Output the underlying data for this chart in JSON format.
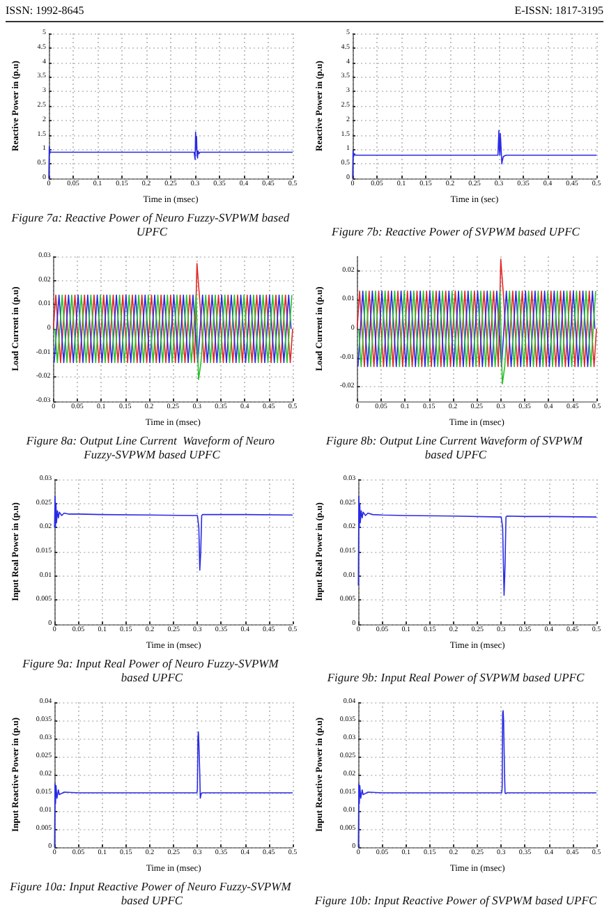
{
  "chart_data": [
    {
      "type": "line",
      "title": "Figure 7a: Reactive Power of Neuro Fuzzy-SVPWM based UPFC",
      "xlabel": "Time in (msec)",
      "ylabel": "Reactive Power in (p.u)",
      "annotations": [
        "ISSN: 1992-8645",
        "E-ISSN: 1817-3195"
      ],
      "xlim": [
        0,
        0.5
      ],
      "ylim": [
        0,
        5
      ],
      "xticks": [
        0,
        0.05,
        0.1,
        0.15,
        0.2,
        0.25,
        0.3,
        0.35,
        0.4,
        0.45,
        0.5
      ],
      "yticks": [
        0,
        0.5,
        1,
        1.5,
        2,
        2.5,
        3,
        3.5,
        4,
        4.5,
        5
      ],
      "grid": true,
      "marker": "none",
      "line_style": "solid",
      "series": [
        {
          "color": "#2a2ae6",
          "x": [
            0,
            0.001,
            0.002,
            0.003,
            0.005,
            0.05,
            0.1,
            0.2,
            0.298,
            0.3,
            0.301,
            0.302,
            0.303,
            0.304,
            0.305,
            0.306,
            0.308,
            0.31,
            0.4,
            0.5
          ],
          "values": [
            0,
            1.1,
            0.85,
            0.92,
            0.9,
            0.9,
            0.9,
            0.9,
            0.9,
            0.65,
            1.6,
            1.0,
            1.45,
            0.8,
            0.7,
            0.95,
            0.85,
            0.9,
            0.9,
            0.9
          ]
        }
      ]
    },
    {
      "type": "line",
      "title": "Figure 7b: Reactive Power of SVPWM based UPFC",
      "xlabel": "Time in (sec)",
      "ylabel": "Reactive Power in (p.u)",
      "xlim": [
        0,
        0.5
      ],
      "ylim": [
        0,
        5
      ],
      "xticks": [
        0,
        0.05,
        0.1,
        0.15,
        0.2,
        0.25,
        0.3,
        0.35,
        0.4,
        0.45,
        0.5
      ],
      "yticks": [
        0,
        0.5,
        1,
        1.5,
        2,
        2.5,
        3,
        3.5,
        4,
        4.5,
        5
      ],
      "grid": true,
      "marker": "none",
      "line_style": "solid",
      "series": [
        {
          "color": "#2a2ae6",
          "x": [
            0,
            0.001,
            0.002,
            0.004,
            0.006,
            0.1,
            0.2,
            0.298,
            0.3,
            0.301,
            0.302,
            0.303,
            0.304,
            0.306,
            0.307,
            0.309,
            0.312,
            0.315,
            0.4,
            0.5
          ],
          "values": [
            0,
            0.95,
            0.75,
            0.85,
            0.8,
            0.8,
            0.8,
            0.8,
            1.65,
            1.0,
            0.8,
            1.55,
            1.2,
            0.5,
            0.6,
            0.75,
            0.78,
            0.8,
            0.8,
            0.8
          ]
        }
      ]
    },
    {
      "type": "line",
      "title": "Figure 8a: Output Line Current  Waveform of Neuro Fuzzy-SVPWM based UPFC",
      "xlabel": "Time in (msec)",
      "ylabel": "Load Current in (p.u)",
      "xlim": [
        0,
        0.5
      ],
      "ylim": [
        -0.03,
        0.03
      ],
      "xticks": [
        0,
        0.05,
        0.1,
        0.15,
        0.2,
        0.25,
        0.3,
        0.35,
        0.4,
        0.45,
        0.5
      ],
      "yticks": [
        -0.03,
        -0.02,
        -0.01,
        0,
        0.01,
        0.02,
        0.03
      ],
      "grid": true,
      "marker": "none",
      "line_style": "solid",
      "series": [
        {
          "color": "#e02828",
          "x": [
            0,
            0.005,
            0.01,
            0.015,
            0.02,
            0.025,
            0.03,
            0.035,
            0.04,
            0.045,
            0.05,
            0.055,
            0.06,
            0.065,
            0.07,
            0.075,
            0.08,
            0.085,
            0.09,
            0.095,
            0.1,
            0.105,
            0.11,
            0.115,
            0.12,
            0.125,
            0.13,
            0.135,
            0.14,
            0.145,
            0.15,
            0.155,
            0.16,
            0.165,
            0.17,
            0.175,
            0.18,
            0.185,
            0.19,
            0.195,
            0.2,
            0.205,
            0.21,
            0.215,
            0.22,
            0.225,
            0.23,
            0.235,
            0.24,
            0.245,
            0.25,
            0.255,
            0.26,
            0.265,
            0.27,
            0.275,
            0.28,
            0.285,
            0.29,
            0.295,
            0.3,
            0.305,
            0.31,
            0.315,
            0.32,
            0.325,
            0.33,
            0.335,
            0.34,
            0.345,
            0.35,
            0.355,
            0.36,
            0.365,
            0.37,
            0.375,
            0.38,
            0.385,
            0.39,
            0.395,
            0.4,
            0.405,
            0.41,
            0.415,
            0.42,
            0.425,
            0.43,
            0.435,
            0.44,
            0.445,
            0.45,
            0.455,
            0.46,
            0.465,
            0.47,
            0.475,
            0.48,
            0.485,
            0.49,
            0.495,
            0.5
          ],
          "values": [
            0,
            0.014,
            0,
            -0.014,
            0,
            0.014,
            0,
            -0.014,
            0,
            0.014,
            0,
            -0.014,
            0,
            0.014,
            0,
            -0.014,
            0,
            0.014,
            0,
            -0.014,
            0,
            0.014,
            0,
            -0.014,
            0,
            0.014,
            0,
            -0.014,
            0,
            0.014,
            0,
            -0.014,
            0,
            0.014,
            0,
            -0.014,
            0,
            0.014,
            0,
            -0.014,
            0,
            0.014,
            0,
            -0.014,
            0,
            0.014,
            0,
            -0.014,
            0,
            0.014,
            0,
            -0.014,
            0,
            0.014,
            0,
            -0.014,
            0,
            0.014,
            0,
            -0.014,
            0.027,
            0.014,
            0,
            -0.014,
            0,
            0.014,
            0,
            -0.014,
            0,
            0.014,
            0,
            -0.014,
            0,
            0.014,
            0,
            -0.014,
            0,
            0.014,
            0,
            -0.014,
            0,
            0.014,
            0,
            -0.014,
            0,
            0.014,
            0,
            -0.014,
            0,
            0.014,
            0,
            -0.014,
            0,
            0.014,
            0,
            -0.014,
            0,
            0.014,
            0,
            -0.014,
            0
          ]
        },
        {
          "color": "#2828e0",
          "x": [
            0.0017,
            0.0067,
            0.0117,
            0.0167,
            0.0217,
            0.0267,
            0.0317,
            0.0367,
            0.0417,
            0.0467,
            0.0517,
            0.0567,
            0.0617,
            0.0667,
            0.0717,
            0.0767,
            0.0817,
            0.0867,
            0.0917,
            0.0967,
            0.1017,
            0.1067,
            0.1117,
            0.1167,
            0.1217,
            0.1267,
            0.1317,
            0.1367,
            0.1417,
            0.1467,
            0.1517,
            0.1567,
            0.1617,
            0.1667,
            0.1717,
            0.1767,
            0.1817,
            0.1867,
            0.1917,
            0.1967,
            0.2017,
            0.2067,
            0.2117,
            0.2167,
            0.2217,
            0.2267,
            0.2317,
            0.2367,
            0.2417,
            0.2467,
            0.2517,
            0.2567,
            0.2617,
            0.2667,
            0.2717,
            0.2767,
            0.2817,
            0.2867,
            0.2917,
            0.2967,
            0.3017,
            0.3067,
            0.3117,
            0.3167,
            0.3217,
            0.3267,
            0.3317,
            0.3367,
            0.3417,
            0.3467,
            0.3517,
            0.3567,
            0.3617,
            0.3667,
            0.3717,
            0.3767,
            0.3817,
            0.3867,
            0.3917,
            0.3967,
            0.4017,
            0.4067,
            0.4117,
            0.4167,
            0.4217,
            0.4267,
            0.4317,
            0.4367,
            0.4417,
            0.4467,
            0.4517,
            0.4567,
            0.4617,
            0.4667,
            0.4717,
            0.4767,
            0.4817,
            0.4867,
            0.4917,
            0.4967
          ],
          "values": [
            -0.014,
            0,
            0.014,
            0,
            -0.014,
            0,
            0.014,
            0,
            -0.014,
            0,
            0.014,
            0,
            -0.014,
            0,
            0.014,
            0,
            -0.014,
            0,
            0.014,
            0,
            -0.014,
            0,
            0.014,
            0,
            -0.014,
            0,
            0.014,
            0,
            -0.014,
            0,
            0.014,
            0,
            -0.014,
            0,
            0.014,
            0,
            -0.014,
            0,
            0.014,
            0,
            -0.014,
            0,
            0.014,
            0,
            -0.014,
            0,
            0.014,
            0,
            -0.014,
            0,
            0.014,
            0,
            -0.014,
            0,
            0.014,
            0,
            -0.014,
            0,
            0.014,
            0,
            -0.014,
            0,
            0.014,
            0,
            -0.014,
            0,
            0.014,
            0,
            -0.014,
            0,
            0.014,
            0,
            -0.014,
            0,
            0.014,
            0,
            -0.014,
            0,
            0.014,
            0,
            -0.014,
            0,
            0.014,
            0,
            -0.014,
            0,
            0.014,
            0,
            -0.014,
            0,
            0.014,
            0,
            -0.014,
            0,
            0.014,
            0,
            -0.014,
            0,
            0.014,
            0
          ]
        },
        {
          "color": "#28c028",
          "x": [
            0.0033,
            0.0083,
            0.0133,
            0.0183,
            0.0233,
            0.0283,
            0.0333,
            0.0383,
            0.0433,
            0.0483,
            0.0533,
            0.0583,
            0.0633,
            0.0683,
            0.0733,
            0.0783,
            0.0833,
            0.0883,
            0.0933,
            0.0983,
            0.1033,
            0.1083,
            0.1133,
            0.1183,
            0.1233,
            0.1283,
            0.1333,
            0.1383,
            0.1433,
            0.1483,
            0.1533,
            0.1583,
            0.1633,
            0.1683,
            0.1733,
            0.1783,
            0.1833,
            0.1883,
            0.1933,
            0.1983,
            0.2033,
            0.2083,
            0.2133,
            0.2183,
            0.2233,
            0.2283,
            0.2333,
            0.2383,
            0.2433,
            0.2483,
            0.2533,
            0.2583,
            0.2633,
            0.2683,
            0.2733,
            0.2783,
            0.2833,
            0.2883,
            0.2933,
            0.2983,
            0.3033,
            0.3083,
            0.3133,
            0.3183,
            0.3233,
            0.3283,
            0.3333,
            0.3383,
            0.3433,
            0.3483,
            0.3533,
            0.3583,
            0.3633,
            0.3683,
            0.3733,
            0.3783,
            0.3833,
            0.3883,
            0.3933,
            0.3983,
            0.4033,
            0.4083,
            0.4133,
            0.4183,
            0.4233,
            0.4283,
            0.4333,
            0.4383,
            0.4433,
            0.4483,
            0.4533,
            0.4583,
            0.4633,
            0.4683,
            0.4733,
            0.4783,
            0.4833,
            0.4883,
            0.4933,
            0.4983
          ],
          "values": [
            0,
            -0.014,
            0,
            0.014,
            0,
            -0.014,
            0,
            0.014,
            0,
            -0.014,
            0,
            0.014,
            0,
            -0.014,
            0,
            0.014,
            0,
            -0.014,
            0,
            0.014,
            0,
            -0.014,
            0,
            0.014,
            0,
            -0.014,
            0,
            0.014,
            0,
            -0.014,
            0,
            0.014,
            0,
            -0.014,
            0,
            0.014,
            0,
            -0.014,
            0,
            0.014,
            0,
            -0.014,
            0,
            0.014,
            0,
            -0.014,
            0,
            0.014,
            0,
            -0.014,
            0,
            0.014,
            0,
            -0.014,
            0,
            0.014,
            0,
            -0.014,
            0,
            0.014,
            -0.021,
            -0.014,
            0,
            0.014,
            0,
            -0.014,
            0,
            0.014,
            0,
            -0.014,
            0,
            0.014,
            0,
            -0.014,
            0,
            0.014,
            0,
            -0.014,
            0,
            0.014,
            0,
            -0.014,
            0,
            0.014,
            0,
            -0.014,
            0,
            0.014,
            0,
            -0.014,
            0,
            0.014,
            0,
            -0.014,
            0,
            0.014,
            0,
            -0.014,
            0,
            0.014
          ]
        }
      ]
    },
    {
      "type": "line",
      "title": "Figure 8b: Output Line Current Waveform of SVPWM based UPFC",
      "xlabel": "Time in (msec)",
      "ylabel": "Load Current in (p.u)",
      "xlim": [
        0,
        0.5
      ],
      "ylim": [
        -0.025,
        0.025
      ],
      "xticks": [
        0,
        0.05,
        0.1,
        0.15,
        0.2,
        0.25,
        0.3,
        0.35,
        0.4,
        0.45,
        0.5
      ],
      "yticks": [
        -0.02,
        -0.01,
        0,
        0.01,
        0.02
      ],
      "grid": true,
      "marker": "none",
      "line_style": "solid",
      "series": [
        {
          "color": "#e02828",
          "x": [
            0,
            0.005,
            0.01,
            0.015,
            0.02,
            0.025,
            0.03,
            0.035,
            0.04,
            0.045,
            0.05,
            0.055,
            0.06,
            0.065,
            0.07,
            0.075,
            0.08,
            0.085,
            0.09,
            0.095,
            0.1,
            0.105,
            0.11,
            0.115,
            0.12,
            0.125,
            0.13,
            0.135,
            0.14,
            0.145,
            0.15,
            0.155,
            0.16,
            0.165,
            0.17,
            0.175,
            0.18,
            0.185,
            0.19,
            0.195,
            0.2,
            0.205,
            0.21,
            0.215,
            0.22,
            0.225,
            0.23,
            0.235,
            0.24,
            0.245,
            0.25,
            0.255,
            0.26,
            0.265,
            0.27,
            0.275,
            0.28,
            0.285,
            0.29,
            0.295,
            0.3,
            0.305,
            0.31,
            0.315,
            0.32,
            0.325,
            0.33,
            0.335,
            0.34,
            0.345,
            0.35,
            0.355,
            0.36,
            0.365,
            0.37,
            0.375,
            0.38,
            0.385,
            0.39,
            0.395,
            0.4,
            0.405,
            0.41,
            0.415,
            0.42,
            0.425,
            0.43,
            0.435,
            0.44,
            0.445,
            0.45,
            0.455,
            0.46,
            0.465,
            0.47,
            0.475,
            0.48,
            0.485,
            0.49,
            0.495,
            0.5
          ],
          "values": [
            0,
            0.013,
            0,
            -0.013,
            0,
            0.013,
            0,
            -0.013,
            0,
            0.013,
            0,
            -0.013,
            0,
            0.013,
            0,
            -0.013,
            0,
            0.013,
            0,
            -0.013,
            0,
            0.013,
            0,
            -0.013,
            0,
            0.013,
            0,
            -0.013,
            0,
            0.013,
            0,
            -0.013,
            0,
            0.013,
            0,
            -0.013,
            0,
            0.013,
            0,
            -0.013,
            0,
            0.013,
            0,
            -0.013,
            0,
            0.013,
            0,
            -0.013,
            0,
            0.013,
            0,
            -0.013,
            0,
            0.013,
            0,
            -0.013,
            0,
            0.013,
            0,
            -0.013,
            0.024,
            0.013,
            0,
            -0.013,
            0,
            0.013,
            0,
            -0.013,
            0,
            0.013,
            0,
            -0.013,
            0,
            0.013,
            0,
            -0.013,
            0,
            0.013,
            0,
            -0.013,
            0,
            0.013,
            0,
            -0.013,
            0,
            0.013,
            0,
            -0.013,
            0,
            0.013,
            0,
            -0.013,
            0,
            0.013,
            0,
            -0.013,
            0,
            0.013,
            0,
            -0.013,
            0
          ]
        },
        {
          "color": "#2828e0",
          "x": [
            0.0017,
            0.0067,
            0.0117,
            0.0167,
            0.0217,
            0.0267,
            0.0317,
            0.0367,
            0.0417,
            0.0467,
            0.0517,
            0.0567,
            0.0617,
            0.0667,
            0.0717,
            0.0767,
            0.0817,
            0.0867,
            0.0917,
            0.0967,
            0.1017,
            0.1067,
            0.1117,
            0.1167,
            0.1217,
            0.1267,
            0.1317,
            0.1367,
            0.1417,
            0.1467,
            0.1517,
            0.1567,
            0.1617,
            0.1667,
            0.1717,
            0.1767,
            0.1817,
            0.1867,
            0.1917,
            0.1967,
            0.2017,
            0.2067,
            0.2117,
            0.2167,
            0.2217,
            0.2267,
            0.2317,
            0.2367,
            0.2417,
            0.2467,
            0.2517,
            0.2567,
            0.2617,
            0.2667,
            0.2717,
            0.2767,
            0.2817,
            0.2867,
            0.2917,
            0.2967,
            0.3017,
            0.3067,
            0.3117,
            0.3167,
            0.3217,
            0.3267,
            0.3317,
            0.3367,
            0.3417,
            0.3467,
            0.3517,
            0.3567,
            0.3617,
            0.3667,
            0.3717,
            0.3767,
            0.3817,
            0.3867,
            0.3917,
            0.3967,
            0.4017,
            0.4067,
            0.4117,
            0.4167,
            0.4217,
            0.4267,
            0.4317,
            0.4367,
            0.4417,
            0.4467,
            0.4517,
            0.4567,
            0.4617,
            0.4667,
            0.4717,
            0.4767,
            0.4817,
            0.4867,
            0.4917,
            0.4967
          ],
          "values": [
            -0.013,
            0,
            0.013,
            0,
            -0.013,
            0,
            0.013,
            0,
            -0.013,
            0,
            0.013,
            0,
            -0.013,
            0,
            0.013,
            0,
            -0.013,
            0,
            0.013,
            0,
            -0.013,
            0,
            0.013,
            0,
            -0.013,
            0,
            0.013,
            0,
            -0.013,
            0,
            0.013,
            0,
            -0.013,
            0,
            0.013,
            0,
            -0.013,
            0,
            0.013,
            0,
            -0.013,
            0,
            0.013,
            0,
            -0.013,
            0,
            0.013,
            0,
            -0.013,
            0,
            0.013,
            0,
            -0.013,
            0,
            0.013,
            0,
            -0.013,
            0,
            0.013,
            0,
            -0.013,
            0,
            0.013,
            0,
            -0.013,
            0,
            0.013,
            0,
            -0.013,
            0,
            0.013,
            0,
            -0.013,
            0,
            0.013,
            0,
            -0.013,
            0,
            0.013,
            0,
            -0.013,
            0,
            0.013,
            0,
            -0.013,
            0,
            0.013,
            0,
            -0.013,
            0,
            0.013,
            0,
            -0.013,
            0,
            0.013,
            0,
            -0.013,
            0,
            0.013,
            0
          ]
        },
        {
          "color": "#28c028",
          "x": [
            0.0033,
            0.0083,
            0.0133,
            0.0183,
            0.0233,
            0.0283,
            0.0333,
            0.0383,
            0.0433,
            0.0483,
            0.0533,
            0.0583,
            0.0633,
            0.0683,
            0.0733,
            0.0783,
            0.0833,
            0.0883,
            0.0933,
            0.0983,
            0.1033,
            0.1083,
            0.1133,
            0.1183,
            0.1233,
            0.1283,
            0.1333,
            0.1383,
            0.1433,
            0.1483,
            0.1533,
            0.1583,
            0.1633,
            0.1683,
            0.1733,
            0.1783,
            0.1833,
            0.1883,
            0.1933,
            0.1983,
            0.2033,
            0.2083,
            0.2133,
            0.2183,
            0.2233,
            0.2283,
            0.2333,
            0.2383,
            0.2433,
            0.2483,
            0.2533,
            0.2583,
            0.2633,
            0.2683,
            0.2733,
            0.2783,
            0.2833,
            0.2883,
            0.2933,
            0.2983,
            0.3033,
            0.3083,
            0.3133,
            0.3183,
            0.3233,
            0.3283,
            0.3333,
            0.3383,
            0.3433,
            0.3483,
            0.3533,
            0.3583,
            0.3633,
            0.3683,
            0.3733,
            0.3783,
            0.3833,
            0.3883,
            0.3933,
            0.3983,
            0.4033,
            0.4083,
            0.4133,
            0.4183,
            0.4233,
            0.4283,
            0.4333,
            0.4383,
            0.4433,
            0.4483,
            0.4533,
            0.4583,
            0.4633,
            0.4683,
            0.4733,
            0.4783,
            0.4833,
            0.4883,
            0.4933,
            0.4983
          ],
          "values": [
            0,
            -0.013,
            0,
            0.013,
            0,
            -0.013,
            0,
            0.013,
            0,
            -0.013,
            0,
            0.013,
            0,
            -0.013,
            0,
            0.013,
            0,
            -0.013,
            0,
            0.013,
            0,
            -0.013,
            0,
            0.013,
            0,
            -0.013,
            0,
            0.013,
            0,
            -0.013,
            0,
            0.013,
            0,
            -0.013,
            0,
            0.013,
            0,
            -0.013,
            0,
            0.013,
            0,
            -0.013,
            0,
            0.013,
            0,
            -0.013,
            0,
            0.013,
            0,
            -0.013,
            0,
            0.013,
            0,
            -0.013,
            0,
            0.013,
            0,
            -0.013,
            0,
            0.013,
            -0.019,
            -0.013,
            0,
            0.013,
            0,
            -0.013,
            0,
            0.013,
            0,
            -0.013,
            0,
            0.013,
            0,
            -0.013,
            0,
            0.013,
            0,
            -0.013,
            0,
            0.013,
            0,
            -0.013,
            0,
            0.013,
            0,
            -0.013,
            0,
            0.013,
            0,
            -0.013,
            0,
            0.013,
            0,
            -0.013,
            0,
            0.013,
            0,
            -0.013,
            0,
            0.013
          ]
        }
      ]
    },
    {
      "type": "line",
      "title": "Figure 9a: Input Real Power of Neuro Fuzzy-SVPWM based UPFC",
      "xlabel": "Time in (msec)",
      "ylabel": "Input Real Power in (p.u)",
      "xlim": [
        0,
        0.5
      ],
      "ylim": [
        0,
        0.03
      ],
      "xticks": [
        0,
        0.05,
        0.1,
        0.15,
        0.2,
        0.25,
        0.3,
        0.35,
        0.4,
        0.45,
        0.5
      ],
      "yticks": [
        0,
        0.005,
        0.01,
        0.015,
        0.02,
        0.025,
        0.03
      ],
      "grid": true,
      "marker": "none",
      "line_style": "solid",
      "series": [
        {
          "color": "#2a2ae6",
          "x": [
            0,
            0.001,
            0.002,
            0.003,
            0.004,
            0.006,
            0.008,
            0.01,
            0.015,
            0.02,
            0.03,
            0.05,
            0.1,
            0.2,
            0.3,
            0.303,
            0.305,
            0.307,
            0.309,
            0.311,
            0.35,
            0.4,
            0.5
          ],
          "values": [
            0.02,
            0.0265,
            0.02,
            0.025,
            0.021,
            0.0235,
            0.022,
            0.0232,
            0.0225,
            0.023,
            0.0228,
            0.0228,
            0.0227,
            0.0226,
            0.0225,
            0.02,
            0.0112,
            0.015,
            0.0225,
            0.0227,
            0.0227,
            0.0227,
            0.0226
          ]
        }
      ]
    },
    {
      "type": "line",
      "title": "Figure 9b: Input Real Power of SVPWM based UPFC",
      "xlabel": "Time in (msec)",
      "ylabel": "Input Real Power in (p.u)",
      "xlim": [
        0,
        0.5
      ],
      "ylim": [
        0,
        0.03
      ],
      "xticks": [
        0,
        0.05,
        0.1,
        0.15,
        0.2,
        0.25,
        0.3,
        0.35,
        0.4,
        0.45,
        0.5
      ],
      "yticks": [
        0,
        0.005,
        0.01,
        0.015,
        0.02,
        0.025,
        0.03
      ],
      "grid": true,
      "marker": "none",
      "line_style": "solid",
      "series": [
        {
          "color": "#2a2ae6",
          "x": [
            0,
            0.001,
            0.002,
            0.003,
            0.004,
            0.006,
            0.008,
            0.01,
            0.015,
            0.02,
            0.03,
            0.05,
            0.1,
            0.2,
            0.3,
            0.303,
            0.306,
            0.308,
            0.31,
            0.312,
            0.35,
            0.4,
            0.5
          ],
          "values": [
            0.008,
            0.0265,
            0.02,
            0.025,
            0.021,
            0.0235,
            0.022,
            0.0232,
            0.0225,
            0.023,
            0.0227,
            0.0226,
            0.0225,
            0.0224,
            0.0222,
            0.02,
            0.006,
            0.012,
            0.0222,
            0.0224,
            0.0223,
            0.0223,
            0.0222
          ]
        }
      ]
    },
    {
      "type": "line",
      "title": "Figure 10a: Input Reactive Power of Neuro Fuzzy-SVPWM based UPFC",
      "xlabel": "Time in (msec)",
      "ylabel": "Input Reactive Power in (p.u)",
      "xlim": [
        0,
        0.5
      ],
      "ylim": [
        0,
        0.04
      ],
      "xticks": [
        0,
        0.05,
        0.1,
        0.15,
        0.2,
        0.25,
        0.3,
        0.35,
        0.4,
        0.45,
        0.5
      ],
      "yticks": [
        0,
        0.005,
        0.01,
        0.015,
        0.02,
        0.025,
        0.03,
        0.035,
        0.04
      ],
      "grid": true,
      "marker": "none",
      "line_style": "solid",
      "series": [
        {
          "color": "#2a2ae6",
          "x": [
            0,
            0.001,
            0.002,
            0.003,
            0.005,
            0.008,
            0.01,
            0.02,
            0.05,
            0.1,
            0.2,
            0.299,
            0.3,
            0.301,
            0.302,
            0.303,
            0.305,
            0.306,
            0.308,
            0.31,
            0.4,
            0.5
          ],
          "values": [
            0,
            0.0175,
            0.012,
            0.017,
            0.0135,
            0.0158,
            0.0145,
            0.0152,
            0.015,
            0.015,
            0.015,
            0.015,
            0.016,
            0.03,
            0.0318,
            0.029,
            0.02,
            0.0135,
            0.0148,
            0.015,
            0.015,
            0.015
          ]
        }
      ]
    },
    {
      "type": "line",
      "title": "Figure 10b: Input Reactive Power of SVPWM based UPFC",
      "xlabel": "Time in (msec)",
      "ylabel": "Input Reactive Power in (p.u)",
      "xlim": [
        0,
        0.5
      ],
      "ylim": [
        0,
        0.04
      ],
      "xticks": [
        0,
        0.05,
        0.1,
        0.15,
        0.2,
        0.25,
        0.3,
        0.35,
        0.4,
        0.45,
        0.5
      ],
      "yticks": [
        0,
        0.005,
        0.01,
        0.015,
        0.02,
        0.025,
        0.03,
        0.035,
        0.04
      ],
      "grid": true,
      "marker": "none",
      "line_style": "solid",
      "series": [
        {
          "color": "#2a2ae6",
          "x": [
            0,
            0.001,
            0.002,
            0.003,
            0.005,
            0.008,
            0.01,
            0.02,
            0.05,
            0.1,
            0.2,
            0.301,
            0.302,
            0.303,
            0.304,
            0.305,
            0.307,
            0.308,
            0.31,
            0.312,
            0.4,
            0.5
          ],
          "values": [
            0,
            0.0175,
            0.012,
            0.017,
            0.0135,
            0.0158,
            0.0145,
            0.0152,
            0.015,
            0.015,
            0.015,
            0.015,
            0.0165,
            0.037,
            0.0377,
            0.035,
            0.02,
            0.015,
            0.0148,
            0.015,
            0.015,
            0.015
          ]
        }
      ]
    }
  ]
}
